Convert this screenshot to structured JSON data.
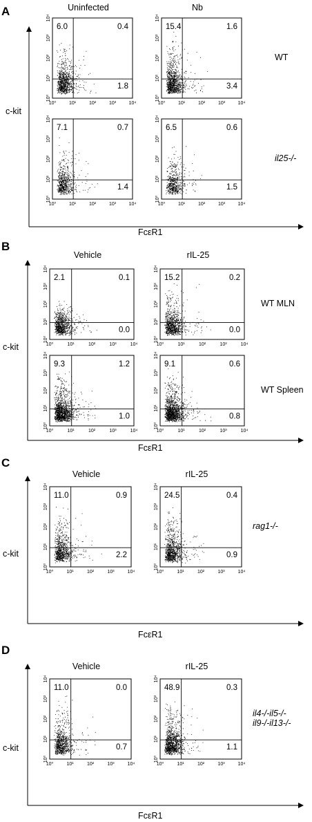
{
  "panels": [
    {
      "letter": "A",
      "y_axis_label": "c-kit",
      "x_axis_label": "FcεR1",
      "columns": [
        "Uninfected",
        "Nb"
      ],
      "rows": [
        {
          "label": "WT",
          "italic": false,
          "plots": [
            {
              "ul": "6.0",
              "ur": "0.4",
              "lr": "1.8",
              "density": 1.0
            },
            {
              "ul": "15.4",
              "ur": "1.6",
              "lr": "3.4",
              "density": 1.1
            }
          ]
        },
        {
          "label": "il25-/-",
          "italic": true,
          "plots": [
            {
              "ul": "7.1",
              "ur": "0.7",
              "lr": "1.4",
              "density": 0.7
            },
            {
              "ul": "6.5",
              "ur": "0.6",
              "lr": "1.5",
              "density": 0.6
            }
          ]
        }
      ]
    },
    {
      "letter": "B",
      "y_axis_label": "c-kit",
      "x_axis_label": "FcεR1",
      "columns": [
        "Vehicle",
        "rIL-25"
      ],
      "rows": [
        {
          "label": "WT MLN",
          "italic": false,
          "plots": [
            {
              "ul": "2.1",
              "ur": "0.1",
              "lr": "0.0",
              "density": 0.9
            },
            {
              "ul": "15.2",
              "ur": "0.2",
              "lr": "0.0",
              "density": 1.0
            }
          ]
        },
        {
          "label": "WT Spleen",
          "italic": false,
          "plots": [
            {
              "ul": "9.3",
              "ur": "1.2",
              "lr": "1.0",
              "density": 1.4
            },
            {
              "ul": "9.1",
              "ur": "0.6",
              "lr": "0.8",
              "density": 1.4
            }
          ]
        }
      ]
    },
    {
      "letter": "C",
      "y_axis_label": "c-kit",
      "x_axis_label": "FcεR1",
      "columns": [
        "Vehicle",
        "rIL-25"
      ],
      "rows": [
        {
          "label": "rag1-/-",
          "italic": true,
          "plots": [
            {
              "ul": "11.0",
              "ur": "0.9",
              "lr": "2.2",
              "density": 0.9
            },
            {
              "ul": "24.5",
              "ur": "0.4",
              "lr": "0.9",
              "density": 1.0
            }
          ]
        }
      ]
    },
    {
      "letter": "D",
      "y_axis_label": "c-kit",
      "x_axis_label": "FcεR1",
      "columns": [
        "Vehicle",
        "rIL-25"
      ],
      "rows": [
        {
          "label": "il4-/-il5-/-\nil9-/-il13-/-",
          "italic": true,
          "plots": [
            {
              "ul": "11.0",
              "ur": "0.0",
              "lr": "0.7",
              "density": 0.9
            },
            {
              "ul": "48.9",
              "ur": "0.3",
              "lr": "1.1",
              "density": 1.2
            }
          ]
        }
      ]
    }
  ],
  "tick_labels": [
    "10⁰",
    "10¹",
    "10²",
    "10³",
    "10⁴"
  ]
}
